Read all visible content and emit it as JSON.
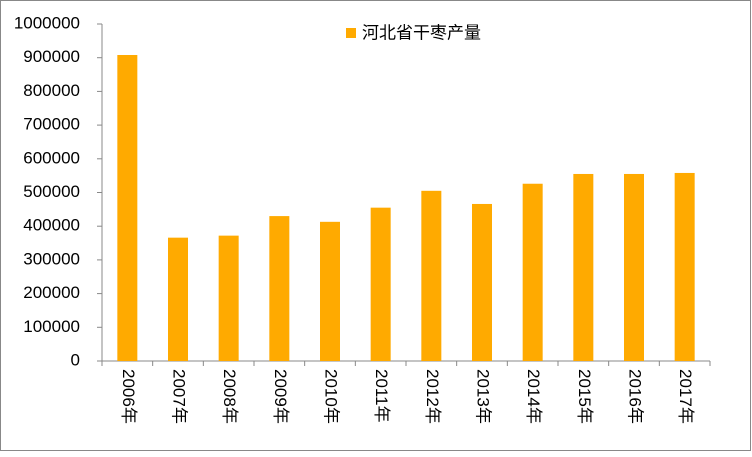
{
  "chart_data": {
    "type": "bar",
    "categories": [
      "2006年",
      "2007年",
      "2008年",
      "2009年",
      "2010年",
      "2011年",
      "2012年",
      "2013年",
      "2014年",
      "2015年",
      "2016年",
      "2017年"
    ],
    "series": [
      {
        "name": "河北省干枣产量",
        "color": "#ffaa00",
        "values": [
          908000,
          366000,
          372000,
          430000,
          413000,
          455000,
          505000,
          466000,
          526000,
          555000,
          555000,
          558000
        ]
      }
    ],
    "ylim": [
      0,
      1000000
    ],
    "yticks": [
      0,
      100000,
      200000,
      300000,
      400000,
      500000,
      600000,
      700000,
      800000,
      900000,
      1000000
    ],
    "grid": false,
    "legend": "top"
  }
}
